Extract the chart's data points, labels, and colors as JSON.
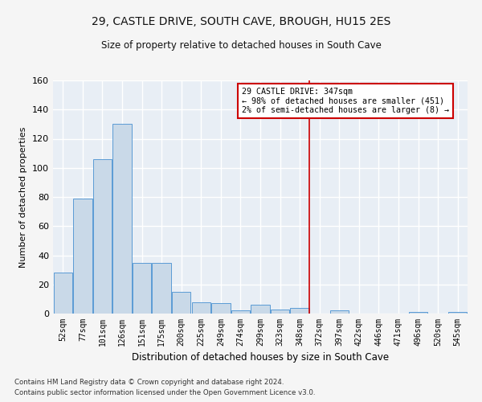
{
  "title": "29, CASTLE DRIVE, SOUTH CAVE, BROUGH, HU15 2ES",
  "subtitle": "Size of property relative to detached houses in South Cave",
  "xlabel": "Distribution of detached houses by size in South Cave",
  "ylabel": "Number of detached properties",
  "categories": [
    "52sqm",
    "77sqm",
    "101sqm",
    "126sqm",
    "151sqm",
    "175sqm",
    "200sqm",
    "225sqm",
    "249sqm",
    "274sqm",
    "299sqm",
    "323sqm",
    "348sqm",
    "372sqm",
    "397sqm",
    "422sqm",
    "446sqm",
    "471sqm",
    "496sqm",
    "520sqm",
    "545sqm"
  ],
  "values": [
    28,
    79,
    106,
    130,
    35,
    35,
    15,
    8,
    7,
    2,
    6,
    3,
    4,
    0,
    2,
    0,
    0,
    0,
    1,
    0,
    1
  ],
  "bar_color": "#c9d9e8",
  "bar_edge_color": "#5b9bd5",
  "background_color": "#e8eef5",
  "grid_color": "#ffffff",
  "fig_bg_color": "#f5f5f5",
  "ylim": [
    0,
    160
  ],
  "yticks": [
    0,
    20,
    40,
    60,
    80,
    100,
    120,
    140,
    160
  ],
  "vline_pos": 12.5,
  "vline_color": "#cc0000",
  "legend_title": "29 CASTLE DRIVE: 347sqm",
  "legend_line1": "← 98% of detached houses are smaller (451)",
  "legend_line2": "2% of semi-detached houses are larger (8) →",
  "legend_box_color": "#cc0000",
  "footnote1": "Contains HM Land Registry data © Crown copyright and database right 2024.",
  "footnote2": "Contains public sector information licensed under the Open Government Licence v3.0."
}
